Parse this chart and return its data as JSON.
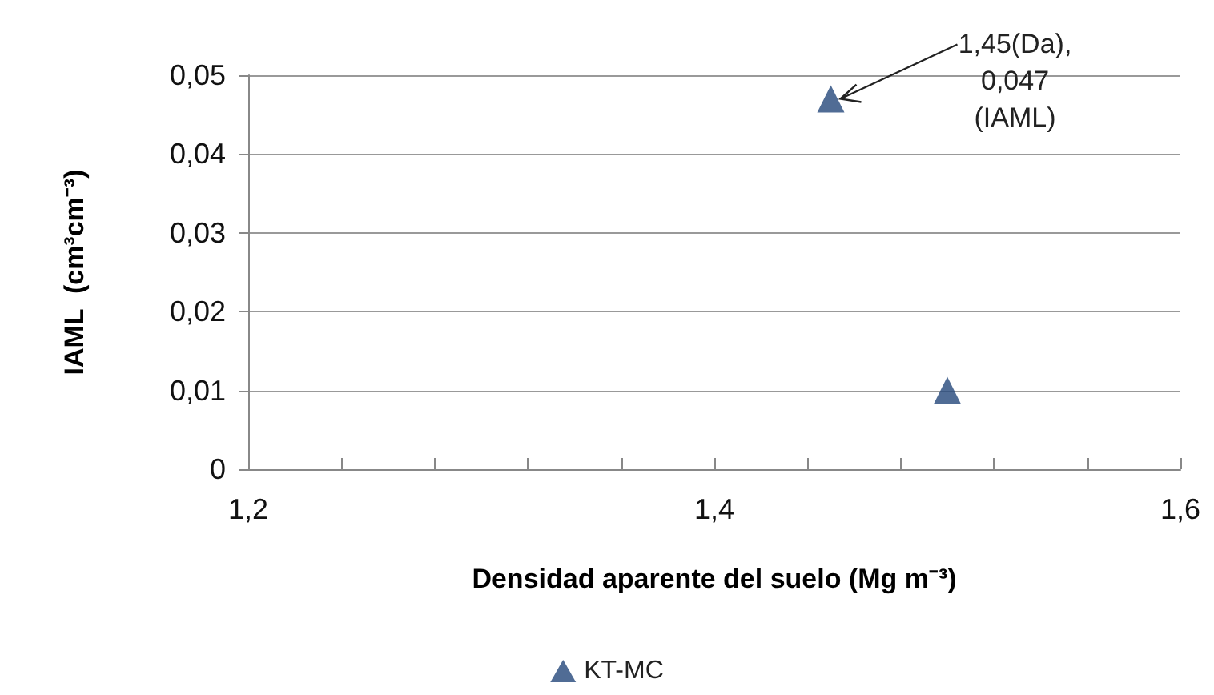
{
  "chart_data": {
    "type": "scatter",
    "xlabel": "Densidad aparente del suelo (Mg m⁻³)",
    "ylabel": "IAML  (cm³cm⁻³)",
    "series": [
      {
        "name": "KT-MC",
        "color": "#24477a",
        "x": [
          1.45,
          1.5
        ],
        "values": [
          0.047,
          0.01
        ]
      }
    ],
    "xlim": [
      1.2,
      1.6
    ],
    "xticks": [
      {
        "value": 1.2,
        "label": "1,2"
      },
      {
        "value": 1.24,
        "label": null
      },
      {
        "value": 1.28,
        "label": null
      },
      {
        "value": 1.32,
        "label": null
      },
      {
        "value": 1.36,
        "label": null
      },
      {
        "value": 1.4,
        "label": "1,4"
      },
      {
        "value": 1.44,
        "label": null
      },
      {
        "value": 1.48,
        "label": null
      },
      {
        "value": 1.52,
        "label": null
      },
      {
        "value": 1.56,
        "label": null
      },
      {
        "value": 1.6,
        "label": "1,6"
      }
    ],
    "ylim": [
      0,
      0.05
    ],
    "yticks": [
      {
        "value": 0,
        "label": "0"
      },
      {
        "value": 0.01,
        "label": "0,01"
      },
      {
        "value": 0.02,
        "label": "0,02"
      },
      {
        "value": 0.03,
        "label": "0,03"
      },
      {
        "value": 0.04,
        "label": "0,04"
      },
      {
        "value": 0.05,
        "label": "0,05"
      }
    ],
    "annotations": [
      {
        "text": "1,45(Da), 0,047 (IAML)",
        "x": 1.45,
        "y": 0.047
      }
    ],
    "grid": "y",
    "legend": "bottom",
    "marker": "triangle"
  }
}
